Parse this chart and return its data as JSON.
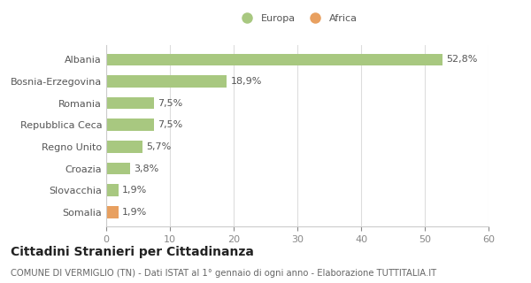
{
  "categories": [
    "Albania",
    "Bosnia-Erzegovina",
    "Romania",
    "Repubblica Ceca",
    "Regno Unito",
    "Croazia",
    "Slovacchia",
    "Somalia"
  ],
  "values": [
    52.8,
    18.9,
    7.5,
    7.5,
    5.7,
    3.8,
    1.9,
    1.9
  ],
  "labels": [
    "52,8%",
    "18,9%",
    "7,5%",
    "7,5%",
    "5,7%",
    "3,8%",
    "1,9%",
    "1,9%"
  ],
  "colors": [
    "#a8c880",
    "#a8c880",
    "#a8c880",
    "#a8c880",
    "#a8c880",
    "#a8c880",
    "#a8c880",
    "#e8a060"
  ],
  "legend_items": [
    {
      "label": "Europa",
      "color": "#a8c880"
    },
    {
      "label": "Africa",
      "color": "#e8a060"
    }
  ],
  "xlim": [
    0,
    60
  ],
  "xticks": [
    0,
    10,
    20,
    30,
    40,
    50,
    60
  ],
  "title_bold": "Cittadini Stranieri per Cittadinanza",
  "subtitle": "COMUNE DI VERMIGLIO (TN) - Dati ISTAT al 1° gennaio di ogni anno - Elaborazione TUTTITALIA.IT",
  "bg_color": "#ffffff",
  "bar_height": 0.55,
  "label_fontsize": 8.0,
  "tick_fontsize": 8.0,
  "title_fontsize": 10.0,
  "subtitle_fontsize": 7.2
}
